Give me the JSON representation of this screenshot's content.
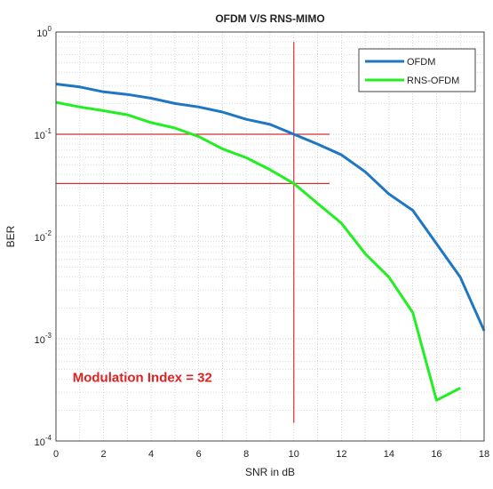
{
  "chart_data": {
    "type": "line",
    "title": "OFDM V/S RNS-MIMO",
    "xlabel": "SNR in dB",
    "ylabel": "BER",
    "xlim": [
      0,
      18
    ],
    "ylim": [
      0.0001,
      1
    ],
    "yscale": "log",
    "grid": true,
    "legend": "top-right",
    "x_ticks": [
      "0",
      "2",
      "4",
      "6",
      "8",
      "10",
      "12",
      "14",
      "16",
      "18"
    ],
    "y_ticks": [
      {
        "base": "10",
        "exp": "0"
      },
      {
        "base": "10",
        "exp": "-1"
      },
      {
        "base": "10",
        "exp": "-2"
      },
      {
        "base": "10",
        "exp": "-3"
      },
      {
        "base": "10",
        "exp": "-4"
      }
    ],
    "series": [
      {
        "name": "OFDM",
        "color": "#1f77c4",
        "x": [
          0,
          1,
          2,
          3,
          4,
          5,
          6,
          7,
          8,
          9,
          10,
          11,
          12,
          13,
          14,
          15,
          16,
          17,
          18
        ],
        "y": [
          0.31,
          0.29,
          0.26,
          0.245,
          0.225,
          0.2,
          0.185,
          0.165,
          0.14,
          0.125,
          0.1,
          0.08,
          0.063,
          0.043,
          0.026,
          0.018,
          0.0085,
          0.004,
          0.0012
        ]
      },
      {
        "name": "RNS-OFDM",
        "color": "#22ee22",
        "x": [
          0,
          1,
          2,
          3,
          4,
          5,
          6,
          7,
          8,
          9,
          10,
          11,
          12,
          13,
          14,
          15,
          16,
          17
        ],
        "y": [
          0.205,
          0.185,
          0.17,
          0.155,
          0.13,
          0.115,
          0.095,
          0.072,
          0.059,
          0.045,
          0.033,
          0.021,
          0.0135,
          0.0068,
          0.004,
          0.0018,
          0.00025,
          0.00033
        ]
      }
    ],
    "reference_lines": {
      "color": "#d03030",
      "vertical": {
        "x": 10,
        "y_range": [
          0.00015,
          0.8
        ]
      },
      "horizontal": [
        {
          "y": 0.1,
          "x_range": [
            0,
            11.5
          ]
        },
        {
          "y": 0.033,
          "x_range": [
            0,
            11.5
          ]
        }
      ]
    },
    "annotation": {
      "text": "Modulation Index = 32",
      "color": "#dd2222",
      "x": 0.7,
      "y": 0.00038
    }
  }
}
